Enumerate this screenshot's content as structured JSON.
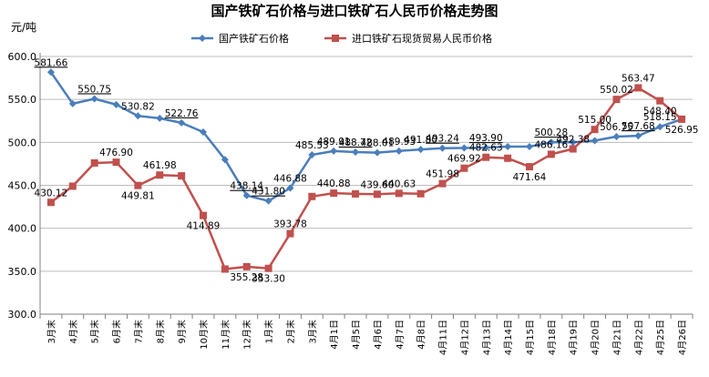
{
  "chart_data": {
    "type": "line",
    "title": "国产铁矿石价格与进口铁矿石人民币价格走势图",
    "ylabel": "元/吨",
    "ylim": [
      300,
      600
    ],
    "yticks": [
      "300.0",
      "350.0",
      "400.0",
      "450.0",
      "500.0",
      "550.0",
      "600.0"
    ],
    "grid": true,
    "legend_position": "top",
    "categories": [
      "3月末",
      "4月末",
      "5月末",
      "6月末",
      "7月末",
      "8月末",
      "9月末",
      "10月末",
      "11月末",
      "12月末",
      "1月末",
      "2月末",
      "3月末",
      "4月1日",
      "4月5日",
      "4月6日",
      "4月7日",
      "4月8日",
      "4月11日",
      "4月12日",
      "4月13日",
      "4月14日",
      "4月15日",
      "4月18日",
      "4月19日",
      "4月20日",
      "4月21日",
      "4月22日",
      "4月25日",
      "4月26日"
    ],
    "series": [
      {
        "name": "国产铁矿石价格",
        "color": "#4a7ebb",
        "marker": "diamond",
        "values": [
          581.66,
          545,
          550.75,
          544,
          530.82,
          528,
          522.76,
          512,
          480,
          438.14,
          431.8,
          446.88,
          485.53,
          489.91,
          488.72,
          488.01,
          489.93,
          491.8,
          493.24,
          493.5,
          493.9,
          495,
          495,
          500.28,
          500,
          502,
          506.75,
          507.68,
          518.15,
          526.95
        ],
        "labels": [
          "581.66",
          "",
          "550.75",
          "",
          "530.82",
          "",
          "522.76",
          "",
          "",
          "438.14",
          "431.80",
          "446.88",
          "485.53",
          "489.91",
          "488.72",
          "488.01",
          "489.93",
          "491.80",
          "493.24",
          "",
          "493.90",
          "",
          "",
          "500.28",
          "",
          "",
          "506.75",
          "507.68",
          "518.15",
          ""
        ]
      },
      {
        "name": "进口铁矿石现货贸易人民币价格",
        "color": "#c0504d",
        "marker": "square",
        "values": [
          430.12,
          449,
          476,
          476.9,
          449.81,
          461.98,
          461,
          414.89,
          352.5,
          355.28,
          353.3,
          393.78,
          437,
          440.88,
          440,
          439.6,
          440.63,
          440.2,
          451.98,
          469.92,
          482.63,
          481.5,
          471.64,
          486.16,
          492.38,
          515,
          550.02,
          563.47,
          548.4,
          526.95
        ],
        "labels": [
          "430.12",
          "",
          "",
          "476.90",
          "449.81",
          "461.98",
          "",
          "414.89",
          "",
          "355.28",
          "353.30",
          "393.78",
          "",
          "440.88",
          "",
          "439.60",
          "440.63",
          "",
          "451.98",
          "469.92",
          "482.63",
          "",
          "471.64",
          "486.16",
          "492.38",
          "515.00",
          "550.02",
          "563.47",
          "548.40",
          "526.95"
        ]
      }
    ]
  }
}
